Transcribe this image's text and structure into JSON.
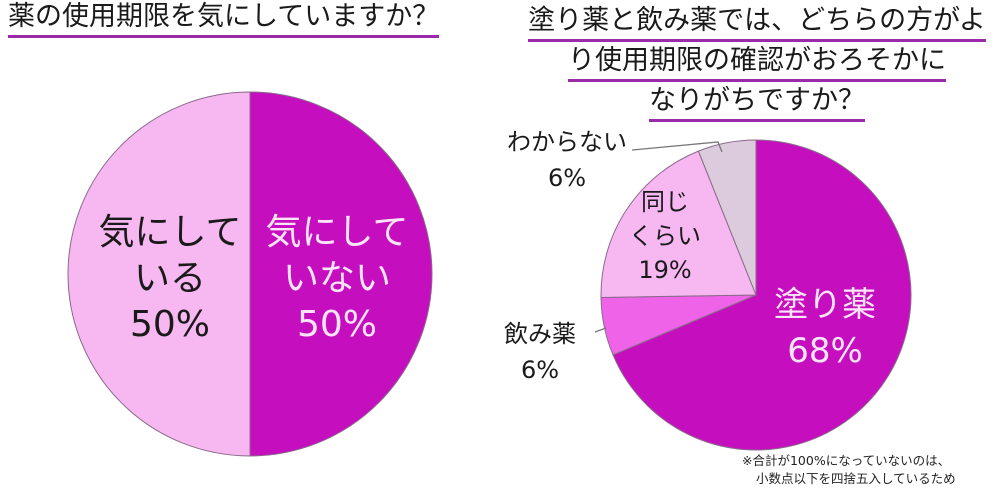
{
  "chart_data": [
    {
      "type": "pie",
      "title": "薬の使用期限を気にしていますか？",
      "categories": [
        "気にしていない",
        "気にしている"
      ],
      "values": [
        50,
        50
      ],
      "units": "%",
      "colors": [
        "#c50fbe",
        "#f7b8f2"
      ],
      "labels": [
        {
          "line1": "気にして",
          "line2": "いない",
          "pct": "50%"
        },
        {
          "line1": "気にして",
          "line2": "いる",
          "pct": "50%"
        }
      ]
    },
    {
      "type": "pie",
      "title": "塗り薬と飲み薬では、どちらの方がより使用期限の確認がおろそかになりがちですか？",
      "title_lines": [
        "塗り薬と飲み薬では、どちらの方がよ",
        "り使用期限の確認がおろそかに",
        "なりがちですか？"
      ],
      "categories": [
        "塗り薬",
        "飲み薬",
        "同じくらい",
        "わからない"
      ],
      "values": [
        68,
        6,
        19,
        6
      ],
      "units": "%",
      "colors": [
        "#c50fbe",
        "#ee63e8",
        "#f7b8f2",
        "#dccbdc"
      ],
      "labels": [
        {
          "line1": "塗り薬",
          "pct": "68%"
        },
        {
          "line1": "飲み薬",
          "pct": "6%"
        },
        {
          "line1": "同じ",
          "line2": "くらい",
          "pct": "19%"
        },
        {
          "line1": "わからない",
          "pct": "6%"
        }
      ]
    }
  ],
  "footnote": {
    "line1": "※合計が100%になっていないのは、",
    "line2": "小数点以下を四捨五入しているため"
  }
}
